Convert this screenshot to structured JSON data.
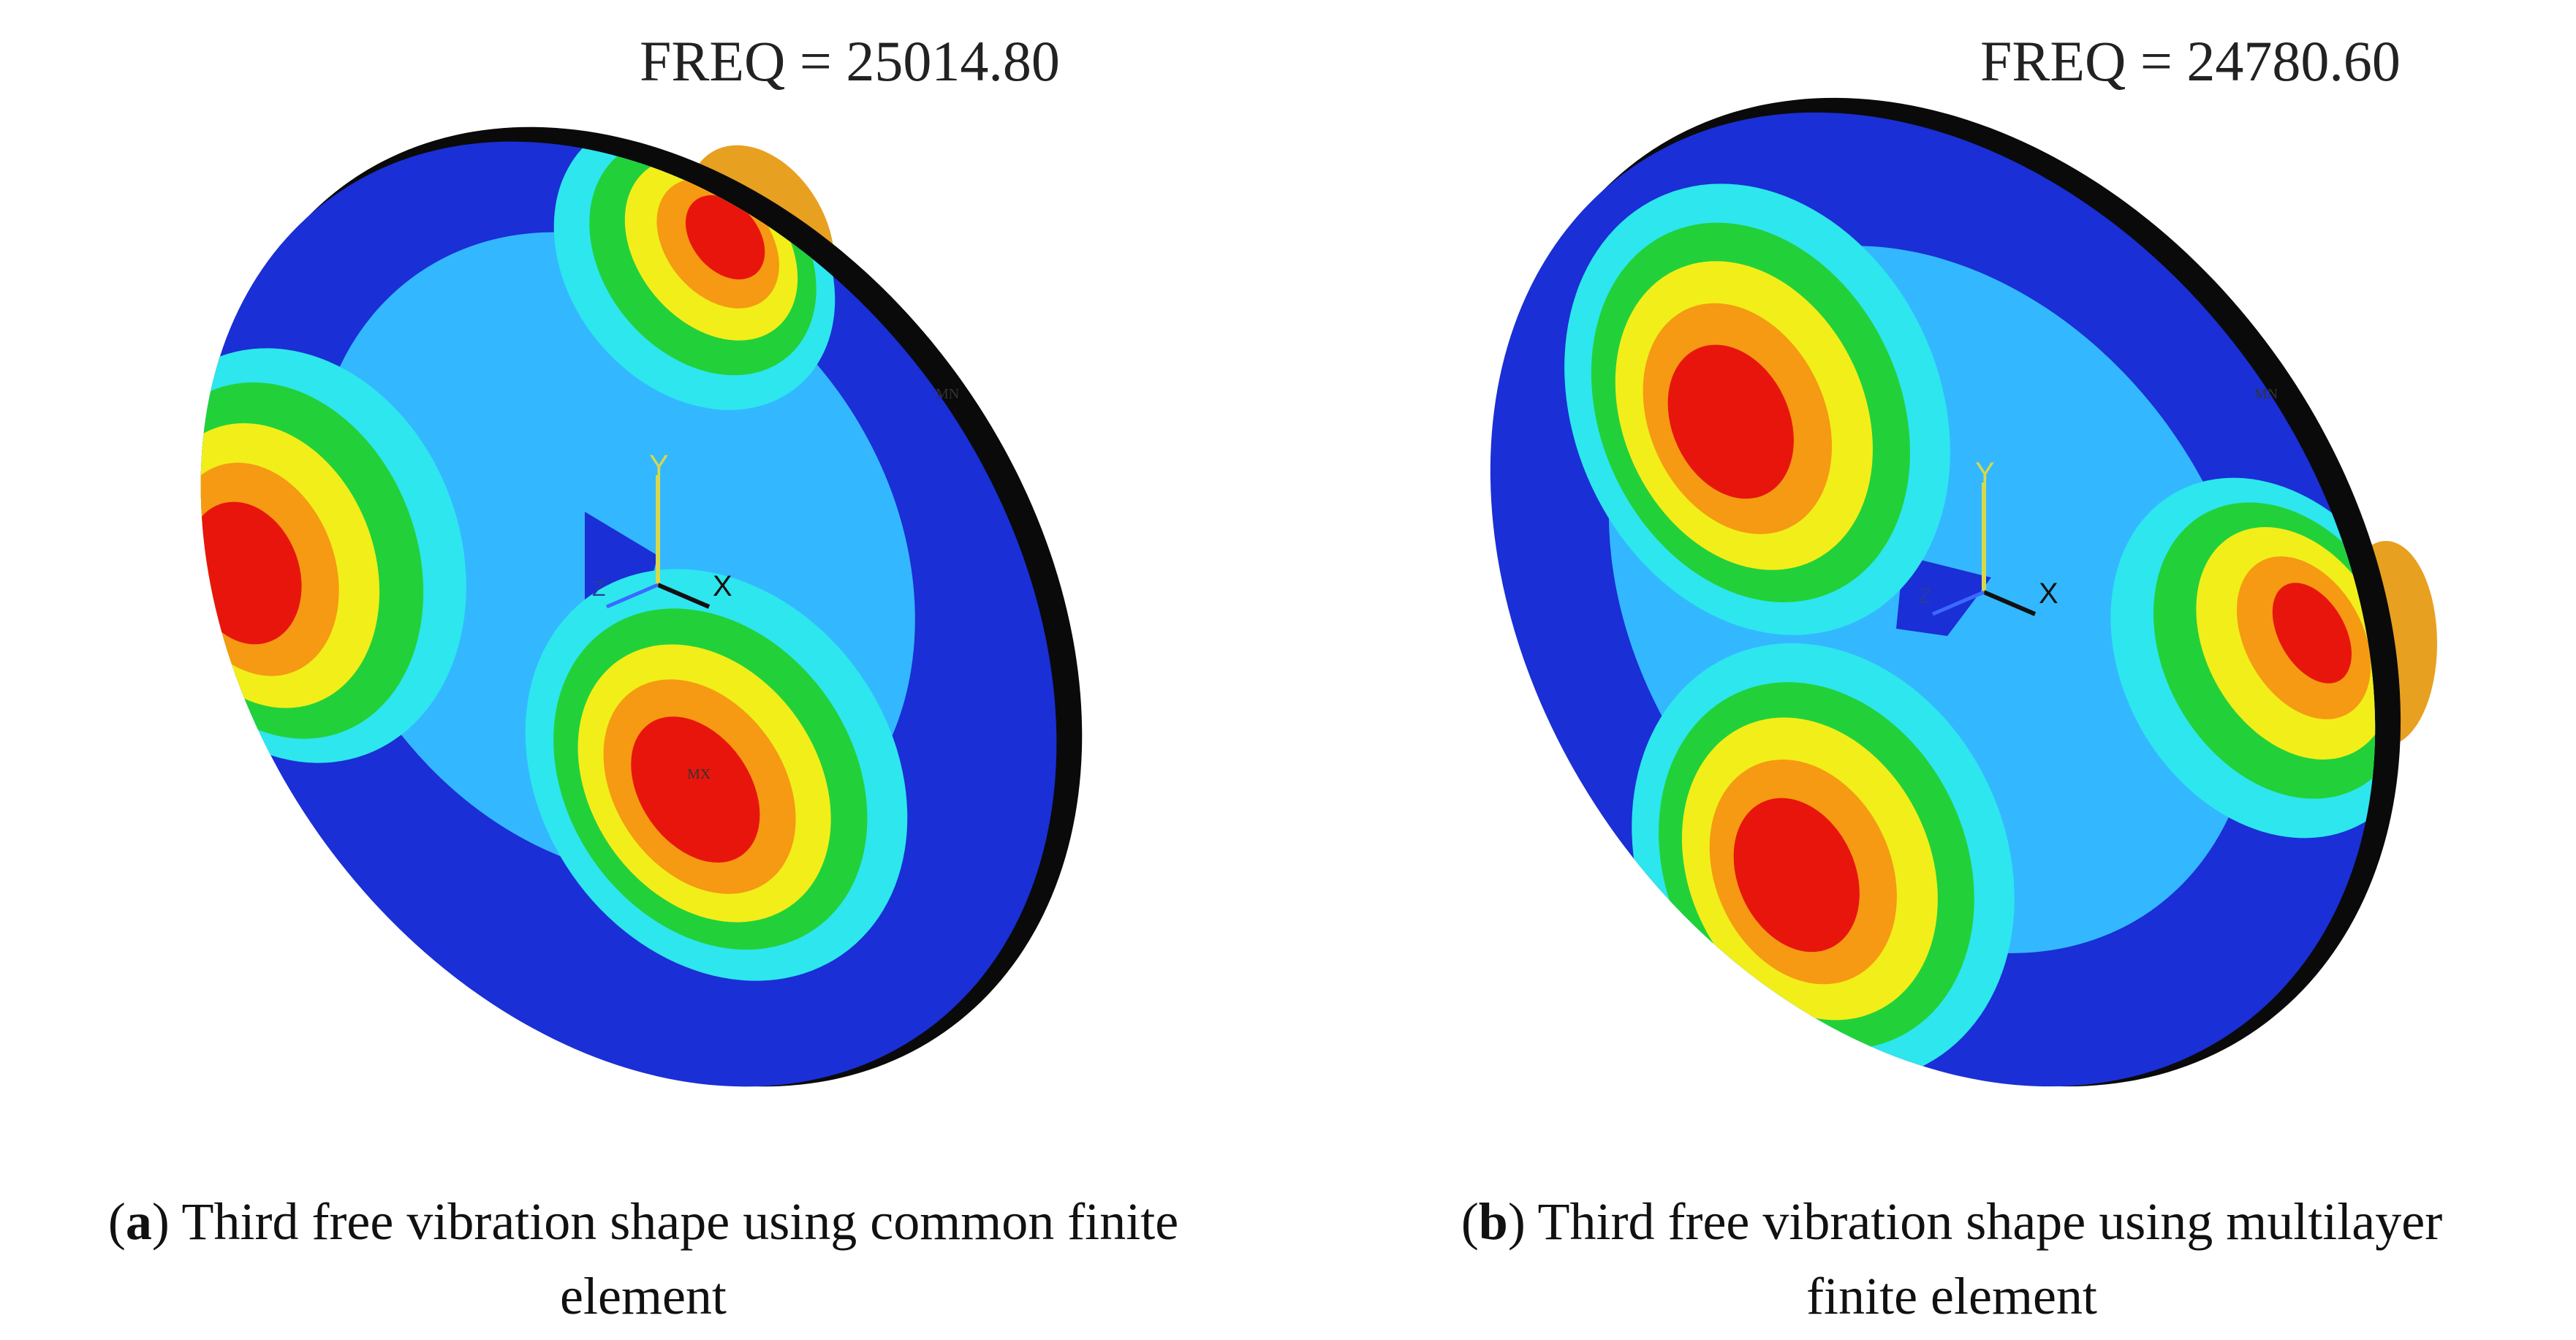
{
  "panels": [
    {
      "id": "a",
      "freq_text": "FREQ = 25014.80",
      "mx_tag": "MX",
      "mn_tag": "MN",
      "axes": {
        "x": "X",
        "y": "Y",
        "z": "Z"
      },
      "caption_letter": "a",
      "caption_line1": " Third free vibration shape using common finite",
      "caption_line2": "element"
    },
    {
      "id": "b",
      "freq_text": "FREQ = 24780.60",
      "mx_tag": "",
      "mn_tag": "MN",
      "axes": {
        "x": "X",
        "y": "Y",
        "z": "Z"
      },
      "caption_letter": "b",
      "caption_line1": " Third free vibration shape using multilayer",
      "caption_line2": "finite element"
    }
  ],
  "colors": {
    "blue": "#1a2fd6",
    "light_blue": "#33b8ff",
    "cyan": "#2ee6ee",
    "green": "#22d13a",
    "yellow": "#f2ee1a",
    "orange": "#f59a12",
    "red": "#e8150c",
    "rim": "#0a0a0a"
  }
}
